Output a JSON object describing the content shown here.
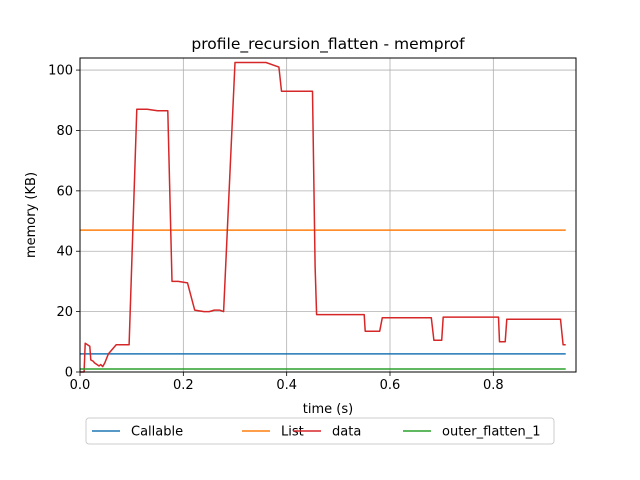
{
  "chart_data": {
    "type": "line",
    "title": "profile_recursion_flatten - memprof",
    "xlabel": "time (s)",
    "ylabel": "memory (KB)",
    "xlim": [
      0,
      0.96
    ],
    "ylim": [
      0,
      104
    ],
    "xticks": [
      0.0,
      0.2,
      0.4,
      0.6,
      0.8
    ],
    "xtick_labels": [
      "0.0",
      "0.2",
      "0.4",
      "0.6",
      "0.8"
    ],
    "yticks": [
      0,
      20,
      40,
      60,
      80,
      100
    ],
    "ytick_labels": [
      "0",
      "20",
      "40",
      "60",
      "80",
      "100"
    ],
    "grid": true,
    "legend_position": "bottom-center-outside",
    "series": [
      {
        "name": "Callable",
        "color": "#1f77b4",
        "x": [
          0.0,
          0.94
        ],
        "y": [
          6,
          6
        ]
      },
      {
        "name": "List",
        "color": "#ff7f0e",
        "x": [
          0.0,
          0.94
        ],
        "y": [
          47,
          47
        ]
      },
      {
        "name": "data",
        "color": "#d62728",
        "x": [
          0.0,
          0.008,
          0.01,
          0.019,
          0.021,
          0.026,
          0.028,
          0.037,
          0.04,
          0.044,
          0.048,
          0.055,
          0.07,
          0.095,
          0.11,
          0.13,
          0.15,
          0.17,
          0.178,
          0.19,
          0.208,
          0.222,
          0.24,
          0.25,
          0.26,
          0.27,
          0.278,
          0.3,
          0.36,
          0.385,
          0.39,
          0.45,
          0.455,
          0.458,
          0.55,
          0.552,
          0.58,
          0.585,
          0.68,
          0.685,
          0.7,
          0.703,
          0.81,
          0.812,
          0.823,
          0.826,
          0.93,
          0.935,
          0.94
        ],
        "y": [
          0,
          0,
          9.5,
          8.5,
          4,
          3.5,
          3,
          2,
          2.5,
          1.8,
          3,
          6,
          9,
          9,
          87,
          87,
          86.5,
          86.5,
          30,
          30,
          29.5,
          20.5,
          20,
          20,
          20.5,
          20.5,
          20,
          102.5,
          102.5,
          101,
          93,
          93,
          35,
          19,
          19,
          13.5,
          13.5,
          18,
          18,
          10.5,
          10.5,
          18.2,
          18.2,
          10,
          10,
          17.5,
          17.5,
          9,
          9
        ]
      },
      {
        "name": "outer_flatten_1",
        "color": "#2ca02c",
        "x": [
          0.0,
          0.94
        ],
        "y": [
          1,
          1
        ]
      }
    ]
  }
}
